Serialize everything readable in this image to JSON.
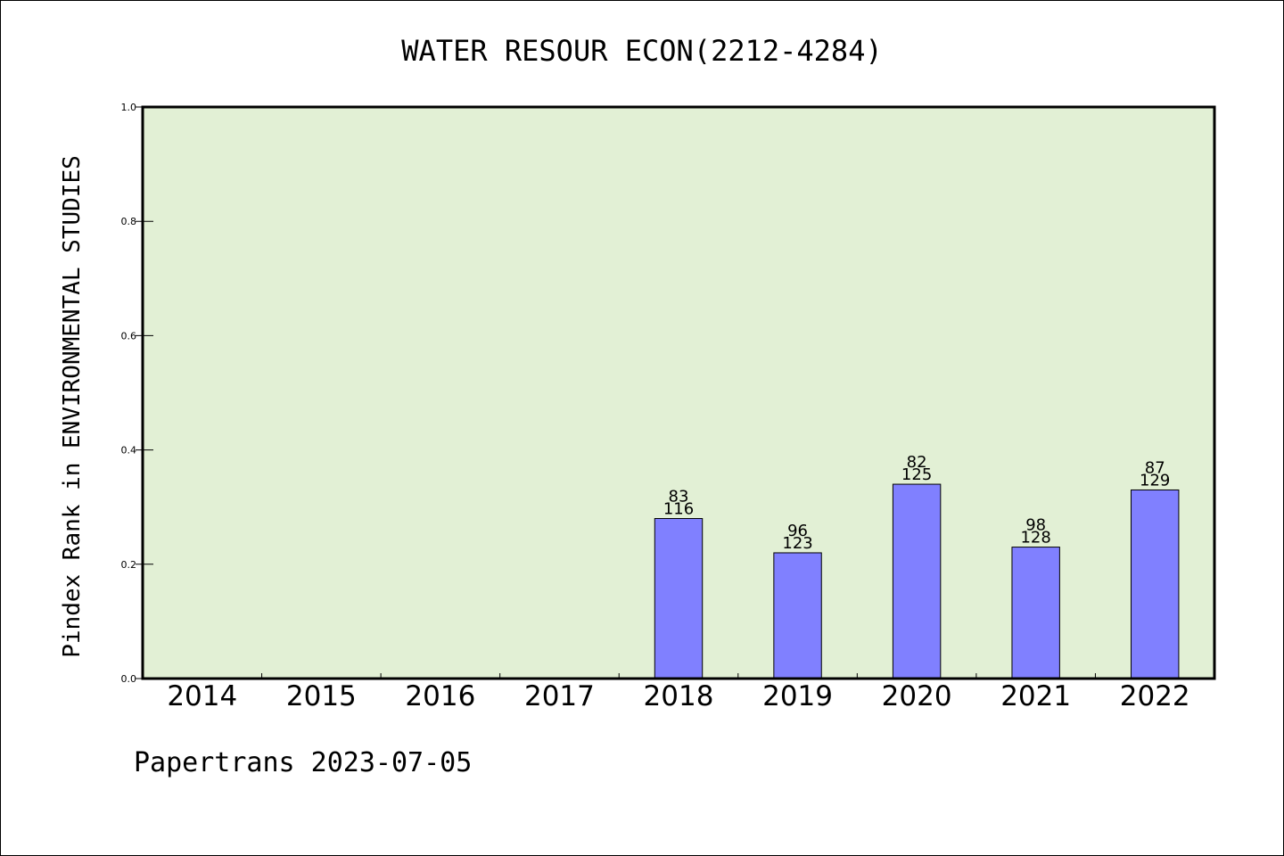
{
  "footer": "Papertrans 2023-07-05",
  "chart_data": {
    "type": "bar",
    "title": "WATER RESOUR ECON(2212-4284)",
    "xlabel": "",
    "ylabel": "Pindex Rank in ENVIRONMENTAL STUDIES",
    "ylim": [
      0,
      1.0
    ],
    "yticks": [
      "0.0",
      "0.2",
      "0.4",
      "0.6",
      "0.8",
      "1.0"
    ],
    "grid": false,
    "categories": [
      "2014",
      "2015",
      "2016",
      "2017",
      "2018",
      "2019",
      "2020",
      "2021",
      "2022"
    ],
    "values": [
      null,
      null,
      null,
      null,
      0.28,
      0.22,
      0.34,
      0.23,
      0.33
    ],
    "rank_labels": [
      "",
      "",
      "",
      "",
      "83",
      "96",
      "82",
      "98",
      "87"
    ],
    "total_labels": [
      "",
      "",
      "",
      "",
      "116",
      "123",
      "125",
      "128",
      "129"
    ],
    "colors": {
      "plot_background": "#e2f0d5",
      "bar_fill": "#8080ff",
      "bar_stroke": "#000000"
    }
  }
}
